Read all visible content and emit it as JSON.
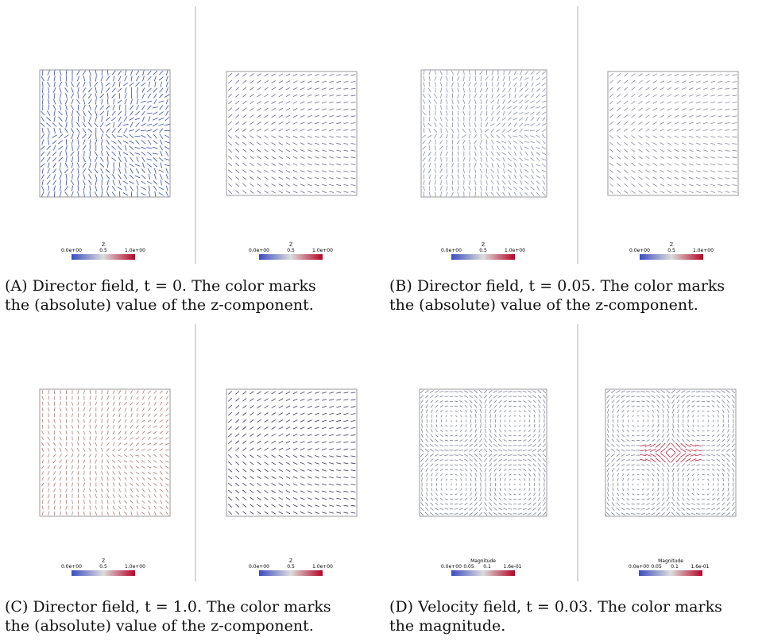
{
  "rows": [
    {
      "subfigures": [
        {
          "id": "A",
          "caption": {
            "tag": "(A)",
            "line1": "Director field, t = 0. The color marks",
            "line2": "the (absolute) value of the z-component."
          },
          "colorbar": {
            "title": "Z",
            "tick_min": "0.0e+00",
            "tick_mid": "0.5",
            "tick_max": "1.0e+00"
          }
        },
        {
          "id": "B",
          "caption": {
            "tag": "(B)",
            "line1": "Director field, t = 0.05. The color marks",
            "line2": "the (absolute) value of the z-component."
          },
          "colorbar": {
            "title": "Z",
            "tick_min": "0.0e+00",
            "tick_mid": "0.5",
            "tick_max": "1.0e+00"
          }
        }
      ]
    },
    {
      "subfigures": [
        {
          "id": "C",
          "caption": {
            "tag": "(C)",
            "line1": "Director field, t = 1.0. The color marks",
            "line2": "the (absolute) value of the z-component."
          },
          "colorbar": {
            "title": "Z",
            "tick_min": "0.0e+00",
            "tick_mid": "0.5",
            "tick_max": "1.0e+00"
          }
        },
        {
          "id": "D",
          "caption": {
            "tag": "(D)",
            "line1": "Velocity field, t = 0.03. The color marks",
            "line2": "the magnitude."
          },
          "colorbar": {
            "title": "Magnitude",
            "tick_min": "0.0e+00",
            "tick_1": "0.05",
            "tick_2": "0.1",
            "tick_max": "1.6e-01"
          }
        }
      ]
    }
  ],
  "colors": {
    "colormap_low": "#3b4cc0",
    "colormap_mid": "#dddddd",
    "colormap_high": "#b40426",
    "frame": "#9a9a9a",
    "divider": "#b0b0b0"
  }
}
